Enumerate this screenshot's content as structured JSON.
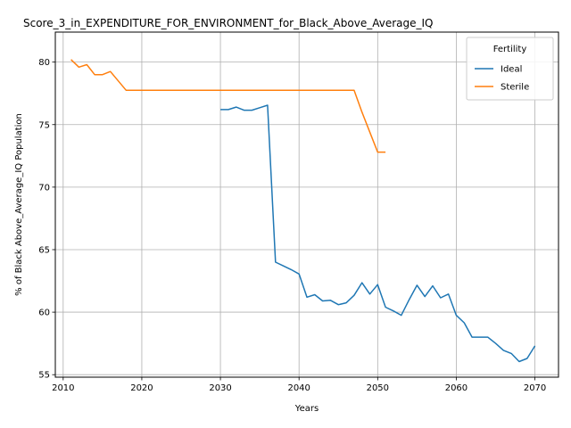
{
  "chart_data": {
    "type": "line",
    "title": "Score_3_in_EXPENDITURE_FOR_ENVIRONMENT_for_Black_Above_Average_IQ",
    "xlabel": "Years",
    "ylabel": "% of Black Above_Average_IQ Population",
    "xlim": [
      2009,
      2073
    ],
    "ylim": [
      54.8,
      82.4
    ],
    "xticks": [
      2010,
      2020,
      2030,
      2040,
      2050,
      2060,
      2070
    ],
    "yticks": [
      55,
      60,
      65,
      70,
      75,
      80
    ],
    "grid": true,
    "legend": {
      "title": "Fertility",
      "placement": "top-right"
    },
    "series": [
      {
        "name": "Ideal",
        "color": "#1f77b4",
        "x": [
          2030,
          2031,
          2032,
          2033,
          2034,
          2035,
          2036,
          2037,
          2038,
          2039,
          2040,
          2041,
          2042,
          2043,
          2044,
          2045,
          2046,
          2047,
          2048,
          2049,
          2050,
          2051,
          2052,
          2053,
          2054,
          2055,
          2056,
          2057,
          2058,
          2059,
          2060,
          2061,
          2062,
          2063,
          2064,
          2065,
          2066,
          2067,
          2068,
          2069,
          2070
        ],
        "y": [
          76.2,
          76.2,
          76.4,
          76.15,
          76.15,
          76.35,
          76.55,
          64.0,
          63.7,
          63.4,
          63.05,
          61.2,
          61.4,
          60.9,
          60.95,
          60.6,
          60.75,
          61.35,
          62.35,
          61.45,
          62.2,
          60.4,
          60.1,
          59.75,
          61.0,
          62.15,
          61.25,
          62.1,
          61.15,
          61.45,
          59.75,
          59.15,
          58.0,
          58.0,
          58.0,
          57.5,
          56.95,
          56.7,
          56.05,
          56.3,
          57.3
        ]
      },
      {
        "name": "Sterile",
        "color": "#ff7f0e",
        "x": [
          2011,
          2012,
          2013,
          2014,
          2015,
          2016,
          2017,
          2018,
          2019,
          2020,
          2021,
          2022,
          2023,
          2024,
          2025,
          2026,
          2027,
          2028,
          2029,
          2030,
          2031,
          2032,
          2033,
          2034,
          2035,
          2036,
          2037,
          2038,
          2039,
          2040,
          2041,
          2042,
          2043,
          2044,
          2045,
          2046,
          2047,
          2048,
          2049,
          2050,
          2051
        ],
        "y": [
          80.2,
          79.6,
          79.8,
          79.0,
          79.0,
          79.25,
          78.5,
          77.75,
          77.75,
          77.75,
          77.75,
          77.75,
          77.75,
          77.75,
          77.75,
          77.75,
          77.75,
          77.75,
          77.75,
          77.75,
          77.75,
          77.75,
          77.75,
          77.75,
          77.75,
          77.75,
          77.75,
          77.75,
          77.75,
          77.75,
          77.75,
          77.75,
          77.75,
          77.75,
          77.75,
          77.75,
          77.75,
          76.0,
          74.4,
          72.8,
          72.8
        ]
      }
    ]
  }
}
